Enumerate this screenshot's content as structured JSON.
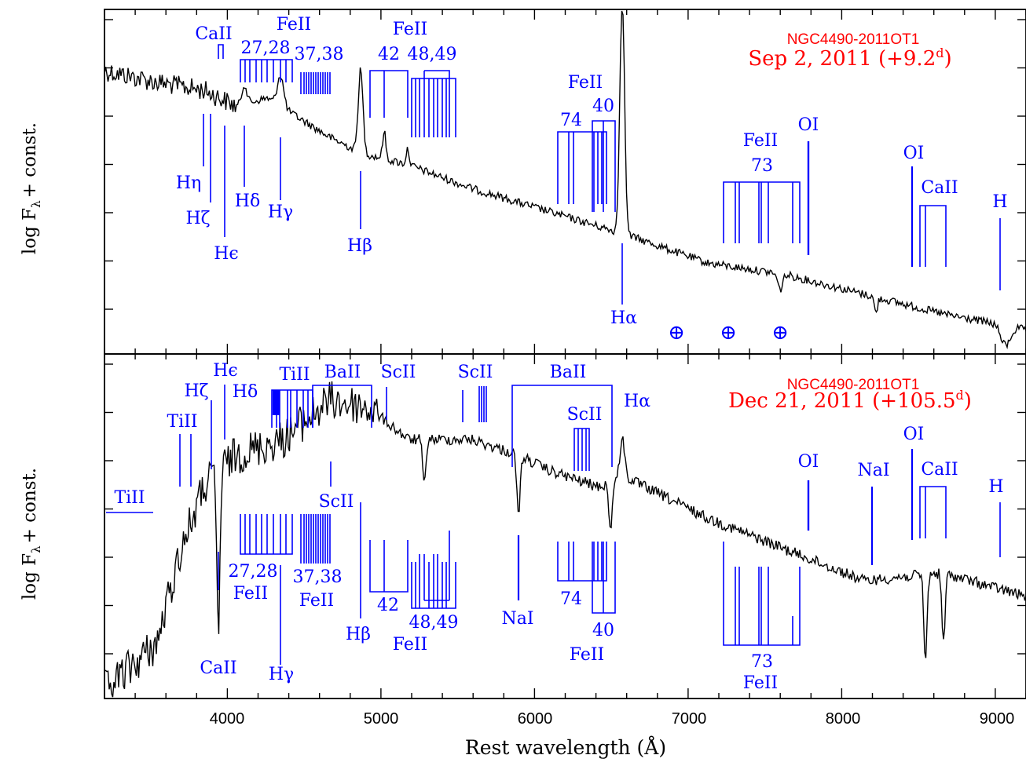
{
  "chart_data": {
    "type": "line",
    "xlabel": "Rest wavelength (Å)",
    "ylabel": "log F_λ+ const.",
    "xlim": [
      3200,
      9200
    ],
    "xticks": [
      4000,
      5000,
      6000,
      7000,
      8000,
      9000
    ],
    "panels": [
      {
        "object": "NGC4490-2011OT1",
        "epoch": "Sep 2, 2011 (+9.2ᵈ)",
        "lines": [
          {
            "label": "CaII",
            "x": 3950,
            "kind": "bracket",
            "dir": "up"
          },
          {
            "label": "FeII 27,28",
            "x": 4233,
            "kind": "group",
            "dir": "up"
          },
          {
            "label": "37,38",
            "x": 4555,
            "kind": "group",
            "dir": "up"
          },
          {
            "label": "FeII 42",
            "x": 5018,
            "kind": "group",
            "dir": "up"
          },
          {
            "label": "48,49",
            "x": 5316,
            "kind": "group",
            "dir": "up"
          },
          {
            "label": "FeII 74",
            "x": 6250,
            "kind": "group",
            "dir": "up"
          },
          {
            "label": "40",
            "x": 6430,
            "kind": "group",
            "dir": "up"
          },
          {
            "label": "FeII 73",
            "x": 7470,
            "kind": "group",
            "dir": "up"
          },
          {
            "label": "OI",
            "x": 7774,
            "kind": "line",
            "dir": "up"
          },
          {
            "label": "OI",
            "x": 8446,
            "kind": "line",
            "dir": "up"
          },
          {
            "label": "CaII",
            "x": 8542,
            "kind": "bracket",
            "dir": "up"
          },
          {
            "label": "H",
            "x": 9015,
            "kind": "line",
            "dir": "up"
          },
          {
            "label": "Hη",
            "x": 3835,
            "kind": "line",
            "dir": "down"
          },
          {
            "label": "Hζ",
            "x": 3889,
            "kind": "line",
            "dir": "down"
          },
          {
            "label": "Hε",
            "x": 3970,
            "kind": "line",
            "dir": "down"
          },
          {
            "label": "Hδ",
            "x": 4102,
            "kind": "line",
            "dir": "down"
          },
          {
            "label": "Hγ",
            "x": 4340,
            "kind": "line",
            "dir": "down"
          },
          {
            "label": "Hβ",
            "x": 4861,
            "kind": "line",
            "dir": "down"
          },
          {
            "label": "Hα",
            "x": 6563,
            "kind": "line",
            "dir": "down"
          }
        ],
        "telluric": [
          6870,
          7186,
          7600
        ]
      },
      {
        "object": "NGC4490-2011OT1",
        "epoch": "Dec 21, 2011 (+105.5ᵈ)",
        "lines": [
          {
            "label": "TiII",
            "x": 3400,
            "kind": "segment",
            "dir": "up"
          },
          {
            "label": "TiII",
            "x": 3700,
            "kind": "line",
            "dir": "up"
          },
          {
            "label": "Hζ",
            "x": 3889,
            "kind": "line",
            "dir": "up"
          },
          {
            "label": "Hε",
            "x": 3970,
            "kind": "line",
            "dir": "up"
          },
          {
            "label": "Hδ",
            "x": 4102,
            "kind": "line",
            "dir": "up"
          },
          {
            "label": "TiII",
            "x": 4450,
            "kind": "group",
            "dir": "up"
          },
          {
            "label": "BaII",
            "x": 4554,
            "kind": "bracket",
            "dir": "up"
          },
          {
            "label": "ScII",
            "x": 5031,
            "kind": "line",
            "dir": "up"
          },
          {
            "label": "ScII",
            "x": 5660,
            "kind": "group",
            "dir": "up"
          },
          {
            "label": "BaII",
            "x": 6141,
            "kind": "bracket",
            "dir": "up"
          },
          {
            "label": "ScII",
            "x": 6300,
            "kind": "group",
            "dir": "up"
          },
          {
            "label": "Hα",
            "x": 6563,
            "kind": "line",
            "dir": "up"
          },
          {
            "label": "OI",
            "x": 7774,
            "kind": "line",
            "dir": "up"
          },
          {
            "label": "NaI",
            "x": 8190,
            "kind": "line",
            "dir": "up"
          },
          {
            "label": "OI",
            "x": 8446,
            "kind": "line",
            "dir": "up"
          },
          {
            "label": "CaII",
            "x": 8542,
            "kind": "bracket",
            "dir": "up"
          },
          {
            "label": "H",
            "x": 9015,
            "kind": "line",
            "dir": "up"
          },
          {
            "label": "ScII",
            "x": 4670,
            "kind": "line",
            "dir": "down"
          },
          {
            "label": "27,28 FeII",
            "x": 4233,
            "kind": "group",
            "dir": "down"
          },
          {
            "label": "37,38 FeII",
            "x": 4555,
            "kind": "group",
            "dir": "down"
          },
          {
            "label": "CaII",
            "x": 3934,
            "kind": "line",
            "dir": "down"
          },
          {
            "label": "Hγ",
            "x": 4340,
            "kind": "line",
            "dir": "down"
          },
          {
            "label": "Hβ",
            "x": 4861,
            "kind": "line",
            "dir": "down"
          },
          {
            "label": "42",
            "x": 5018,
            "kind": "group",
            "dir": "down"
          },
          {
            "label": "48,49 FeII",
            "x": 5316,
            "kind": "group",
            "dir": "down"
          },
          {
            "label": "NaI",
            "x": 5890,
            "kind": "line",
            "dir": "down"
          },
          {
            "label": "74",
            "x": 6250,
            "kind": "group",
            "dir": "down"
          },
          {
            "label": "40 FeII",
            "x": 6430,
            "kind": "group",
            "dir": "down"
          },
          {
            "label": "73 FeII",
            "x": 7470,
            "kind": "group",
            "dir": "down"
          }
        ]
      }
    ]
  },
  "text": {
    "p1": {
      "object": "NGC4490-2011OT1",
      "epoch": "Sep 2, 2011 (+9.2",
      "epoch_sup": "d",
      "epoch_end": ")",
      "ylabel_main": "log F",
      "ylabel_sub": "λ",
      "ylabel_end": "+ const.",
      "caii": "CaII",
      "feii_top": "FeII",
      "g2728": "27,28",
      "g3738": "37,38",
      "feii42_a": "FeII",
      "feii42_b": "42",
      "g4849": "48,49",
      "feii_mid": "FeII",
      "g74": "74",
      "g40": "40",
      "feii73_a": "FeII",
      "feii73_b": "73",
      "oi1": "OI",
      "oi2": "OI",
      "caii2": "CaII",
      "h": "H",
      "heta": "Hη",
      "hzeta": "Hζ",
      "heps": "Hϵ",
      "hdelta": "Hδ",
      "hgamma": "Hγ",
      "hbeta": "Hβ",
      "halpha": "Hα",
      "earth": "⊕"
    },
    "p2": {
      "object": "NGC4490-2011OT1",
      "epoch": "Dec 21, 2011 (+105.5",
      "epoch_sup": "d",
      "epoch_end": ")",
      "ylabel_main": "log F",
      "ylabel_sub": "λ",
      "ylabel_end": "+ const.",
      "tiii_left": "TiII",
      "tiii_a": "TiII",
      "hzeta": "Hζ",
      "heps": "Hϵ",
      "hdelta": "Hδ",
      "tiii_b": "TiII",
      "baii_a": "BaII",
      "scii_a": "ScII",
      "scii_b": "ScII",
      "baii_b": "BaII",
      "scii_c": "ScII",
      "halpha": "Hα",
      "oi1": "OI",
      "naI": "NaI",
      "oi2": "OI",
      "caii": "CaII",
      "h": "H",
      "scii_d": "ScII",
      "g2728": "27,28",
      "feii_a": "FeII",
      "g3738": "37,38",
      "feii_b": "FeII",
      "caii_b": "CaII",
      "hgamma": "Hγ",
      "hbeta": "Hβ",
      "g42": "42",
      "g4849": "48,49",
      "feii_c": "FeII",
      "nai_b": "NaI",
      "g74": "74",
      "g40": "40",
      "feii_d": "FeII",
      "g73": "73",
      "feii_e": "FeII"
    },
    "xticklabels": [
      "4000",
      "5000",
      "6000",
      "7000",
      "8000",
      "9000"
    ],
    "xlabel": "Rest wavelength (Å)"
  },
  "colors": {
    "annotation": "#0000ff",
    "epoch": "#ff0000",
    "spectrum": "#000000",
    "axes": "#000000"
  }
}
